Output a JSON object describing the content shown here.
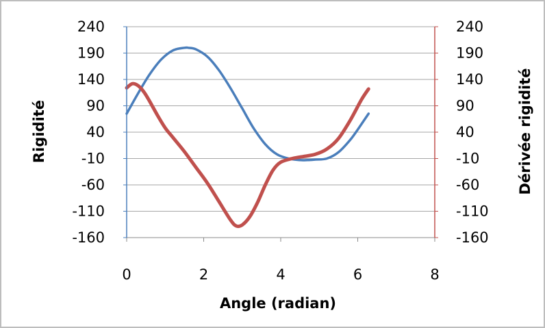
{
  "chart_data": {
    "type": "line",
    "title": "",
    "xlabel": "Angle (radian)",
    "ylabel": "Rigidité",
    "y2label": "Dérivée rigidité",
    "xlim": [
      0,
      8
    ],
    "ylim": [
      -160,
      240
    ],
    "y2lim": [
      -160,
      240
    ],
    "x_ticks": [
      "0",
      "2",
      "4",
      "6",
      "8"
    ],
    "y_ticks": [
      "240",
      "190",
      "140",
      "90",
      "40",
      "-10",
      "-60",
      "-110",
      "-160"
    ],
    "y2_ticks": [
      "240",
      "190",
      "140",
      "90",
      "40",
      "-10",
      "-60",
      "-110",
      "-160"
    ],
    "grid": true,
    "colors": {
      "primary_axis": "#4a7ebb",
      "secondary_axis": "#c0504d",
      "grid": "#a6a6a6"
    },
    "series": [
      {
        "axis": "left",
        "color": "#4a7ebb",
        "x": [
          0,
          0.3,
          0.6,
          0.9,
          1.2,
          1.5,
          1.6,
          1.8,
          2.1,
          2.4,
          2.7,
          3.0,
          3.3,
          3.6,
          3.9,
          4.2,
          4.5,
          4.7,
          4.9,
          5.2,
          5.5,
          5.8,
          6.0,
          6.28
        ],
        "y": [
          75,
          114,
          150,
          178,
          195,
          200,
          200,
          197,
          183,
          157,
          123,
          85,
          47,
          17,
          -2,
          -10,
          -13,
          -13,
          -12,
          -10,
          2,
          25,
          45,
          75
        ]
      },
      {
        "axis": "right",
        "color": "#c0504d",
        "x": [
          0,
          0.15,
          0.3,
          0.45,
          0.6,
          0.8,
          1.0,
          1.2,
          1.5,
          1.8,
          2.1,
          2.4,
          2.7,
          2.85,
          3.0,
          3.2,
          3.4,
          3.6,
          3.8,
          4.0,
          4.3,
          4.6,
          4.9,
          5.2,
          5.5,
          5.8,
          6.1,
          6.28
        ],
        "y": [
          124,
          132,
          128,
          116,
          98,
          72,
          48,
          30,
          3,
          -27,
          -57,
          -92,
          -127,
          -138,
          -136,
          -120,
          -93,
          -60,
          -32,
          -17,
          -10,
          -6,
          -2,
          8,
          28,
          62,
          102,
          122
        ]
      }
    ]
  }
}
